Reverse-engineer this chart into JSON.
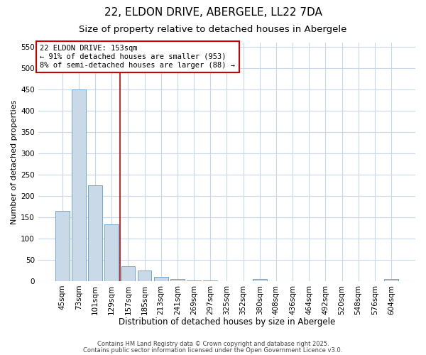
{
  "title": "22, ELDON DRIVE, ABERGELE, LL22 7DA",
  "subtitle": "Size of property relative to detached houses in Abergele",
  "xlabel": "Distribution of detached houses by size in Abergele",
  "ylabel": "Number of detached properties",
  "categories": [
    "45sqm",
    "73sqm",
    "101sqm",
    "129sqm",
    "157sqm",
    "185sqm",
    "213sqm",
    "241sqm",
    "269sqm",
    "297sqm",
    "325sqm",
    "352sqm",
    "380sqm",
    "408sqm",
    "436sqm",
    "464sqm",
    "492sqm",
    "520sqm",
    "548sqm",
    "576sqm",
    "604sqm"
  ],
  "values": [
    165,
    450,
    225,
    133,
    35,
    25,
    9,
    5,
    2,
    1,
    0,
    0,
    4,
    0,
    0,
    0,
    0,
    0,
    0,
    0,
    5
  ],
  "bar_color": "#c9d9e8",
  "bar_edge_color": "#6fa8d0",
  "vline_x_index": 4,
  "vline_color": "#cc0000",
  "annotation_text": "22 ELDON DRIVE: 153sqm\n← 91% of detached houses are smaller (953)\n8% of semi-detached houses are larger (88) →",
  "annotation_box_color": "#cc0000",
  "ylim": [
    0,
    560
  ],
  "yticks": [
    0,
    50,
    100,
    150,
    200,
    250,
    300,
    350,
    400,
    450,
    500,
    550
  ],
  "title_fontsize": 11,
  "subtitle_fontsize": 9.5,
  "xlabel_fontsize": 8.5,
  "ylabel_fontsize": 8,
  "tick_fontsize": 7.5,
  "annotation_fontsize": 7.5,
  "footer_line1": "Contains HM Land Registry data © Crown copyright and database right 2025.",
  "footer_line2": "Contains public sector information licensed under the Open Government Licence v3.0.",
  "footer_fontsize": 6,
  "background_color": "#ffffff",
  "grid_color": "#c8d8e8"
}
